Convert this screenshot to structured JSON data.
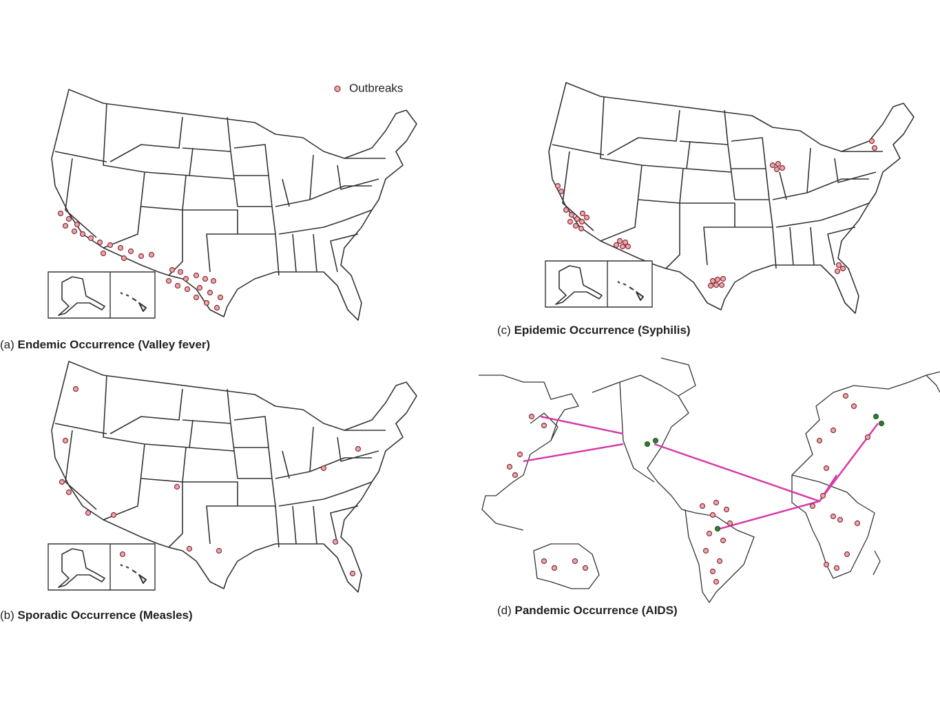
{
  "legend": {
    "label": "Outbreaks"
  },
  "panels": [
    {
      "tag": "(a)",
      "title": "Endemic Occurrence (Valley fever)"
    },
    {
      "tag": "(b)",
      "title": "Sporadic Occurrence (Measles)"
    },
    {
      "tag": "(c)",
      "title": "Epidemic Occurrence (Syphilis)"
    },
    {
      "tag": "(d)",
      "title": "Pandemic Occurrence (AIDS)"
    }
  ]
}
